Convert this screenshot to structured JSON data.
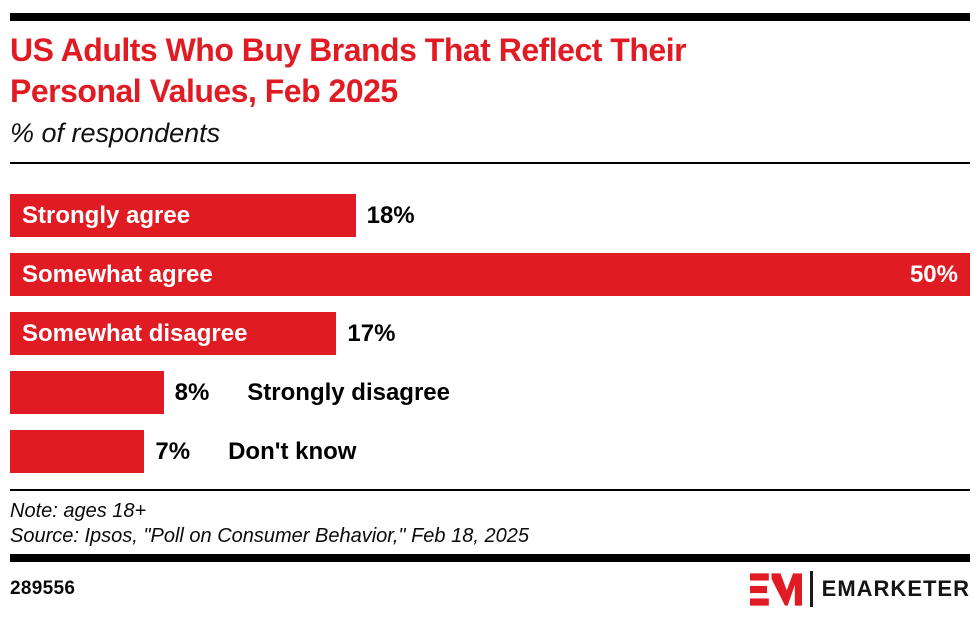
{
  "header": {
    "title": "US Adults Who Buy Brands That Reflect Their Personal Values, Feb 2025",
    "title_line1": "US Adults Who Buy Brands That Reflect Their",
    "title_line2": "Personal Values, Feb 2025",
    "subtitle": "% of respondents"
  },
  "chart_data": {
    "type": "bar",
    "orientation": "horizontal",
    "title": "US Adults Who Buy Brands That Reflect Their Personal Values, Feb 2025",
    "unit_label": "% of respondents",
    "xlim": [
      0,
      50
    ],
    "grid": false,
    "legend": "none",
    "bar_color": "#E11B23",
    "categories": [
      "Strongly agree",
      "Somewhat agree",
      "Somewhat disagree",
      "Strongly disagree",
      "Don't know"
    ],
    "values": [
      18,
      50,
      17,
      8,
      7
    ],
    "bars": [
      {
        "label": "Strongly agree",
        "value": 18,
        "display": "18%",
        "label_pos": "inside",
        "value_pos": "outside"
      },
      {
        "label": "Somewhat agree",
        "value": 50,
        "display": "50%",
        "label_pos": "inside",
        "value_pos": "inside"
      },
      {
        "label": "Somewhat disagree",
        "value": 17,
        "display": "17%",
        "label_pos": "inside",
        "value_pos": "outside"
      },
      {
        "label": "Strongly disagree",
        "value": 8,
        "display": "8%",
        "label_pos": "outside",
        "value_pos": "outside"
      },
      {
        "label": "Don't know",
        "value": 7,
        "display": "7%",
        "label_pos": "outside",
        "value_pos": "outside"
      }
    ]
  },
  "footer": {
    "note": "Note: ages 18+",
    "source": "Source: Ipsos, \"Poll on Consumer Behavior,\" Feb 18, 2025",
    "chart_id": "289556",
    "brand_wordmark": "EMARKETER"
  },
  "colors": {
    "accent_red": "#E11B23",
    "text": "#000000",
    "rule": "#000000",
    "bar_text_inside": "#FFFFFF"
  }
}
